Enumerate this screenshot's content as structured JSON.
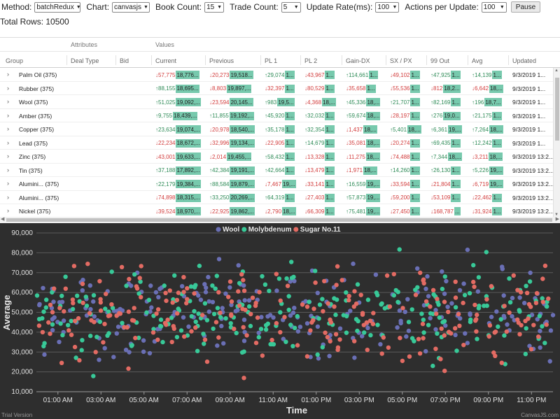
{
  "toolbar": {
    "method_label": "Method:",
    "method_value": "batchRedux",
    "chart_label": "Chart:",
    "chart_value": "canvasjs",
    "book_label": "Book Count:",
    "book_value": "15",
    "trade_label": "Trade Count:",
    "trade_value": "5",
    "rate_label": "Update Rate(ms):",
    "rate_value": "100",
    "actions_label": "Actions per Update:",
    "actions_value": "100",
    "pause_label": "Pause"
  },
  "total_rows": "Total Rows: 10500",
  "grid": {
    "group_headers": [
      "Attributes",
      "Values"
    ],
    "columns": [
      "Group",
      "Deal Type",
      "Bid",
      "Current",
      "Previous",
      "PL 1",
      "PL 2",
      "Gain-DX",
      "SX / PX",
      "99 Out",
      "Avg",
      "Updated"
    ],
    "rows": [
      {
        "name": "Palm Oil (375)",
        "cells": [
          [
            "↓57,775",
            "18,776..."
          ],
          [
            "↓20,273",
            "19,518..."
          ],
          [
            "↑29,074",
            "1..."
          ],
          [
            "↓43,967",
            "1..."
          ],
          [
            "↑114,661",
            "1..."
          ],
          [
            "↓49,102",
            "1..."
          ],
          [
            "↑47,925",
            "1..."
          ],
          [
            "↑14,139",
            "1..."
          ]
        ],
        "updated": "9/3/2019 1..."
      },
      {
        "name": "Rubber (375)",
        "cells": [
          [
            "↑88,155",
            "18,695..."
          ],
          [
            "↓8,803",
            "19,897,..."
          ],
          [
            "↓32,397",
            "1..."
          ],
          [
            "↓80,529",
            "1..."
          ],
          [
            "↓35,658",
            "1..."
          ],
          [
            "↓55,536",
            "1..."
          ],
          [
            "↓812",
            "18,2..."
          ],
          [
            "↓6,642",
            "18,..."
          ]
        ],
        "updated": "9/3/2019 1..."
      },
      {
        "name": "Wool (375)",
        "cells": [
          [
            "↑51,025",
            "19,092,..."
          ],
          [
            "↓23,594",
            "20,145..."
          ],
          [
            "↑983",
            "19,5..."
          ],
          [
            "↓4,368",
            "18,..."
          ],
          [
            "↑45,336",
            "18,..."
          ],
          [
            "↑21,707",
            "1..."
          ],
          [
            "↑82,169",
            "1..."
          ],
          [
            "↑196",
            "18,7..."
          ]
        ],
        "updated": "9/3/2019 1..."
      },
      {
        "name": "Amber (375)",
        "cells": [
          [
            "↑9,755",
            "18,439,..."
          ],
          [
            "↑11,855",
            "19,192,..."
          ],
          [
            "↑45,920",
            "1..."
          ],
          [
            "↑32,032",
            "1..."
          ],
          [
            "↑59,674",
            "18,..."
          ],
          [
            "↓28,197",
            "1..."
          ],
          [
            "↑276",
            "19,0..."
          ],
          [
            "↑21,175",
            "1..."
          ]
        ],
        "updated": "9/3/2019 1..."
      },
      {
        "name": "Copper (375)",
        "cells": [
          [
            "↑23,634",
            "19,074,..."
          ],
          [
            "↓20,978",
            "18,540,..."
          ],
          [
            "↑35,178",
            "1..."
          ],
          [
            "↑32,354",
            "1..."
          ],
          [
            "↓1,437",
            "18,..."
          ],
          [
            "↑5,401",
            "18,..."
          ],
          [
            "↑6,361",
            "19,..."
          ],
          [
            "↑7,264",
            "18,..."
          ]
        ],
        "updated": "9/3/2019 1..."
      },
      {
        "name": "Lead (375)",
        "cells": [
          [
            "↓22,234",
            "18,672,..."
          ],
          [
            "↓32,996",
            "19,134,..."
          ],
          [
            "↓22,905",
            "1..."
          ],
          [
            "↑14,679",
            "1..."
          ],
          [
            "↓35,081",
            "18,..."
          ],
          [
            "↓20,274",
            "1..."
          ],
          [
            "↑69,435",
            "1..."
          ],
          [
            "↑12,242",
            "1..."
          ]
        ],
        "updated": "9/3/2019 1..."
      },
      {
        "name": "Zinc (375)",
        "cells": [
          [
            "↓43,001",
            "19,633,..."
          ],
          [
            "↓2,014",
            "19,455,..."
          ],
          [
            "↑58,432",
            "1..."
          ],
          [
            "↓13,328",
            "1..."
          ],
          [
            "↓11,275",
            "18,..."
          ],
          [
            "↓74,488",
            "1..."
          ],
          [
            "↑7,344",
            "18,..."
          ],
          [
            "↓3,211",
            "18,..."
          ]
        ],
        "updated": "9/3/2019 13:2..."
      },
      {
        "name": "Tin (375)",
        "cells": [
          [
            "↑37,188",
            "17,892,..."
          ],
          [
            "↑42,384",
            "19,191,..."
          ],
          [
            "↑42,664",
            "1..."
          ],
          [
            "↓13,479",
            "1..."
          ],
          [
            "↓1,971",
            "18,..."
          ],
          [
            "↑14,260",
            "1..."
          ],
          [
            "↑26,130",
            "1..."
          ],
          [
            "↑5,226",
            "19,..."
          ]
        ],
        "updated": "9/3/2019 13:2..."
      },
      {
        "name": "Alumini... (375)",
        "cells": [
          [
            "↑22,179",
            "19,384,..."
          ],
          [
            "↑88,584",
            "19,879,..."
          ],
          [
            "↓7,467",
            "19,..."
          ],
          [
            "↓33,141",
            "1..."
          ],
          [
            "↑16,559",
            "19,..."
          ],
          [
            "↓33,594",
            "1..."
          ],
          [
            "↓21,804",
            "1..."
          ],
          [
            "↓6,719",
            "19,..."
          ]
        ],
        "updated": "9/3/2019 13:2..."
      },
      {
        "name": "Alumini... (375)",
        "cells": [
          [
            "↓74,898",
            "18,315,..."
          ],
          [
            "↑33,250",
            "20,269,..."
          ],
          [
            "↑64,319",
            "1..."
          ],
          [
            "↓27,403",
            "1..."
          ],
          [
            "↑57,873",
            "19,..."
          ],
          [
            "↓59,200",
            "1..."
          ],
          [
            "↓53,109",
            "1..."
          ],
          [
            "↓22,462",
            "1..."
          ]
        ],
        "updated": "9/3/2019 13:2..."
      },
      {
        "name": "Nickel (375)",
        "cells": [
          [
            "↓39,524",
            "18,970,..."
          ],
          [
            "↓22,925",
            "19,862,..."
          ],
          [
            "↓2,790",
            "18,..."
          ],
          [
            "↓66,309",
            "1..."
          ],
          [
            "↑75,481",
            "19,..."
          ],
          [
            "↓27,450",
            "1..."
          ],
          [
            "↓168,787",
            "..."
          ],
          [
            "↓31,924",
            "1..."
          ]
        ],
        "updated": "9/3/2019 13:2..."
      }
    ]
  },
  "chart_data": {
    "type": "scatter",
    "ylabel": "Average",
    "xlabel": "Time",
    "ylim": [
      10000,
      90000
    ],
    "yticks": [
      "10,000",
      "20,000",
      "30,000",
      "40,000",
      "50,000",
      "60,000",
      "70,000",
      "80,000",
      "90,000"
    ],
    "xticks": [
      "01:00 AM",
      "03:00 AM",
      "05:00 AM",
      "07:00 AM",
      "09:00 AM",
      "11:00 AM",
      "01:00 PM",
      "03:00 PM",
      "05:00 PM",
      "07:00 PM",
      "09:00 PM",
      "11:00 PM"
    ],
    "xlim": [
      0,
      24
    ],
    "grid": true,
    "legend_position": "top",
    "series": [
      {
        "name": "Wool",
        "color": "#6a6fb5",
        "seed": 11,
        "count": 240
      },
      {
        "name": "Molybdenum",
        "color": "#38c998",
        "seed": 29,
        "count": 240
      },
      {
        "name": "Sugar No.11",
        "color": "#e36b63",
        "seed": 53,
        "count": 240
      }
    ]
  },
  "watermarks": {
    "left": "Trial Version",
    "right": "CanvasJS.com"
  },
  "colors": {
    "up": "#2e8b57",
    "down": "#d23c3c",
    "bar": "#77c9ad",
    "chart_bg": "#2e2e2e"
  }
}
